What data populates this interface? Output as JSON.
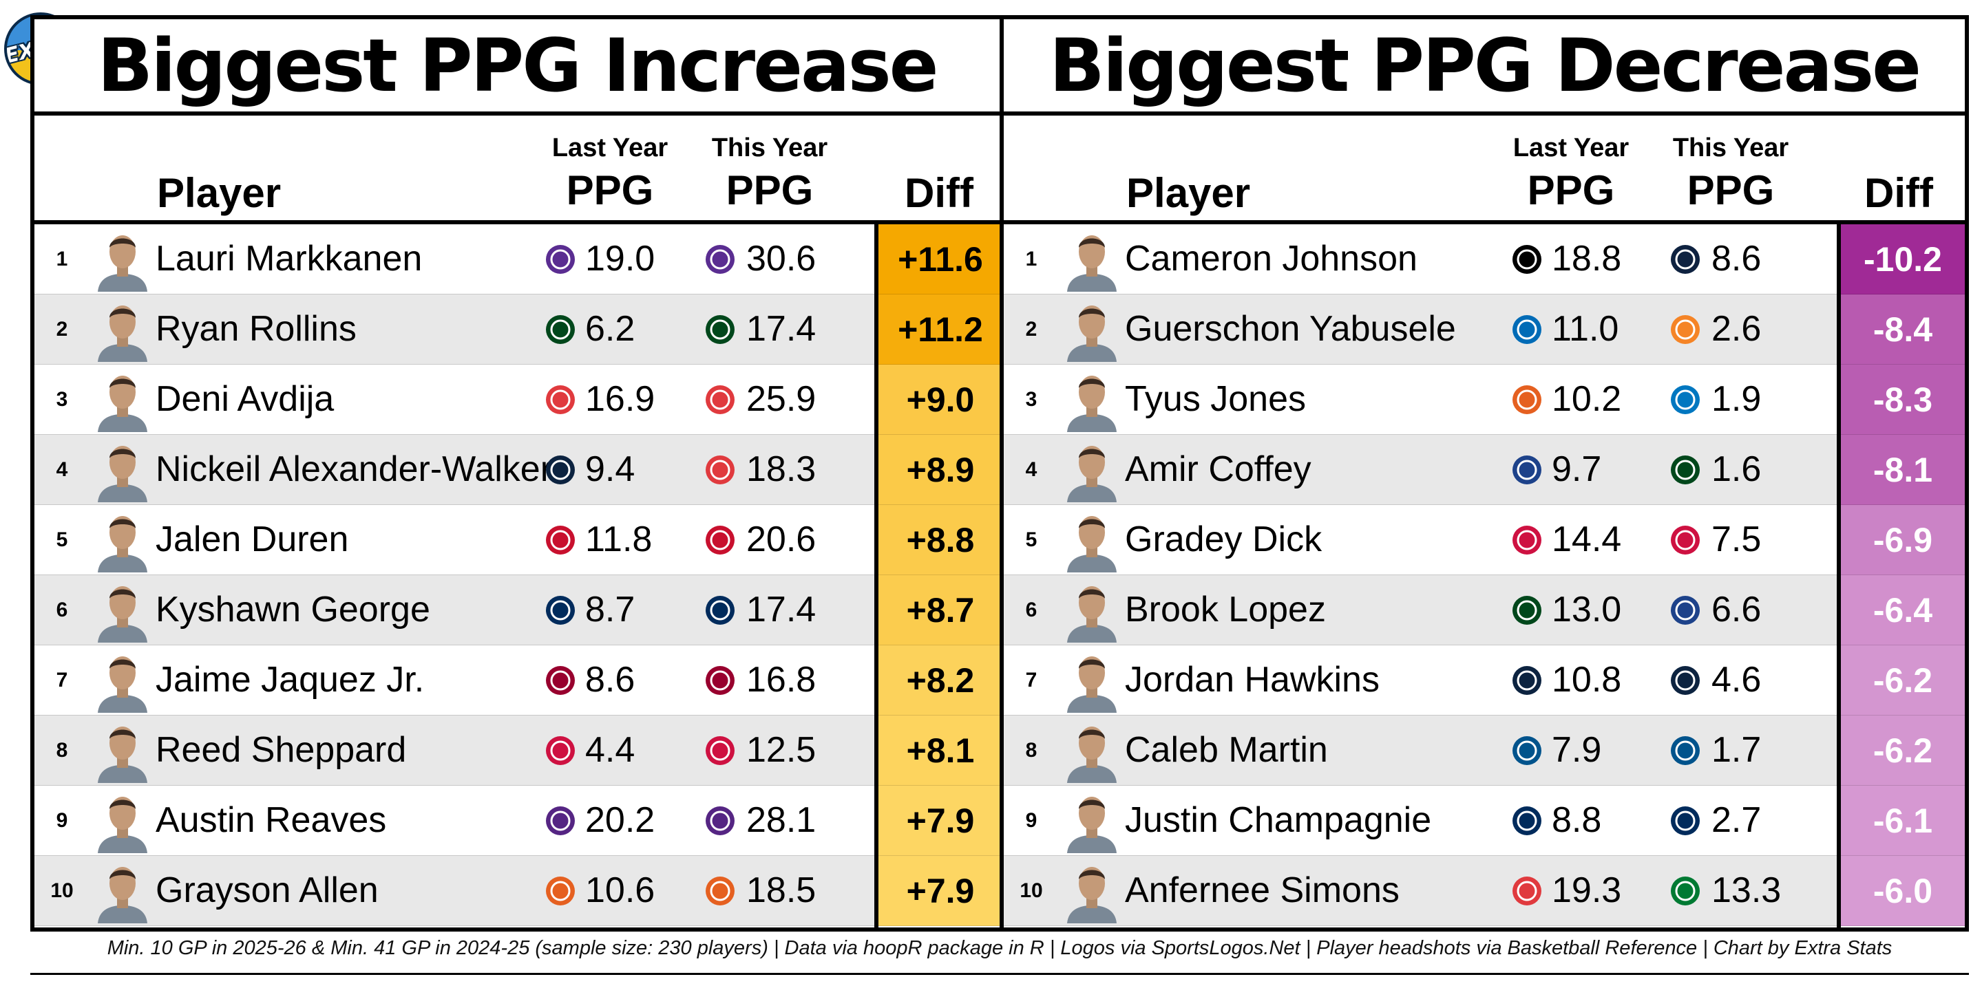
{
  "badge": "EXTRA",
  "chart_data": [
    {
      "type": "table",
      "title": "Biggest PPG Increase",
      "columns": {
        "player": "Player",
        "last_year_small": "Last Year",
        "last_year_big": "PPG",
        "this_year_small": "This Year",
        "this_year_big": "PPG",
        "diff": "Diff"
      },
      "rows": [
        {
          "rank": "1",
          "player": "Lauri Markkanen",
          "last_team_icon": "jazz-logo",
          "last_year": "19.0",
          "this_team_icon": "jazz-logo",
          "this_year": "30.6",
          "diff": "+11.6",
          "diff_value": 11.6
        },
        {
          "rank": "2",
          "player": "Ryan Rollins",
          "last_team_icon": "bucks-logo",
          "last_year": "6.2",
          "this_team_icon": "bucks-logo",
          "this_year": "17.4",
          "diff": "+11.2",
          "diff_value": 11.2
        },
        {
          "rank": "3",
          "player": "Deni Avdija",
          "last_team_icon": "blazers-logo",
          "last_year": "16.9",
          "this_team_icon": "blazers-logo",
          "this_year": "25.9",
          "diff": "+9.0",
          "diff_value": 9.0
        },
        {
          "rank": "4",
          "player": "Nickeil Alexander-Walker",
          "last_team_icon": "timberwolves-logo",
          "last_year": "9.4",
          "this_team_icon": "hawks-logo",
          "this_year": "18.3",
          "diff": "+8.9",
          "diff_value": 8.9
        },
        {
          "rank": "5",
          "player": "Jalen Duren",
          "last_team_icon": "pistons-logo",
          "last_year": "11.8",
          "this_team_icon": "pistons-logo",
          "this_year": "20.6",
          "diff": "+8.8",
          "diff_value": 8.8
        },
        {
          "rank": "6",
          "player": "Kyshawn George",
          "last_team_icon": "wizards-logo",
          "last_year": "8.7",
          "this_team_icon": "wizards-logo",
          "this_year": "17.4",
          "diff": "+8.7",
          "diff_value": 8.7
        },
        {
          "rank": "7",
          "player": "Jaime Jaquez Jr.",
          "last_team_icon": "heat-logo",
          "last_year": "8.6",
          "this_team_icon": "heat-logo",
          "this_year": "16.8",
          "diff": "+8.2",
          "diff_value": 8.2
        },
        {
          "rank": "8",
          "player": "Reed Sheppard",
          "last_team_icon": "rockets-logo",
          "last_year": "4.4",
          "this_team_icon": "rockets-logo",
          "this_year": "12.5",
          "diff": "+8.1",
          "diff_value": 8.1
        },
        {
          "rank": "9",
          "player": "Austin Reaves",
          "last_team_icon": "lakers-logo",
          "last_year": "20.2",
          "this_team_icon": "lakers-logo",
          "this_year": "28.1",
          "diff": "+7.9",
          "diff_value": 7.9
        },
        {
          "rank": "10",
          "player": "Grayson Allen",
          "last_team_icon": "suns-logo",
          "last_year": "10.6",
          "this_team_icon": "suns-logo",
          "this_year": "18.5",
          "diff": "+7.9",
          "diff_value": 7.9
        }
      ]
    },
    {
      "type": "table",
      "title": "Biggest PPG Decrease",
      "columns": {
        "player": "Player",
        "last_year_small": "Last Year",
        "last_year_big": "PPG",
        "this_year_small": "This Year",
        "this_year_big": "PPG",
        "diff": "Diff"
      },
      "rows": [
        {
          "rank": "1",
          "player": "Cameron Johnson",
          "last_team_icon": "nets-logo",
          "last_year": "18.8",
          "this_team_icon": "nuggets-logo",
          "this_year": "8.6",
          "diff": "-10.2",
          "diff_value": -10.2
        },
        {
          "rank": "2",
          "player": "Guerschon Yabusele",
          "last_team_icon": "76ers-logo",
          "last_year": "11.0",
          "this_team_icon": "knicks-logo",
          "this_year": "2.6",
          "diff": "-8.4",
          "diff_value": -8.4
        },
        {
          "rank": "3",
          "player": "Tyus Jones",
          "last_team_icon": "suns-logo",
          "last_year": "10.2",
          "this_team_icon": "magic-logo",
          "this_year": "1.9",
          "diff": "-8.3",
          "diff_value": -8.3
        },
        {
          "rank": "4",
          "player": "Amir Coffey",
          "last_team_icon": "clippers-logo",
          "last_year": "9.7",
          "this_team_icon": "bucks-logo",
          "this_year": "1.6",
          "diff": "-8.1",
          "diff_value": -8.1
        },
        {
          "rank": "5",
          "player": "Gradey Dick",
          "last_team_icon": "raptors-logo",
          "last_year": "14.4",
          "this_team_icon": "raptors-logo",
          "this_year": "7.5",
          "diff": "-6.9",
          "diff_value": -6.9
        },
        {
          "rank": "6",
          "player": "Brook Lopez",
          "last_team_icon": "bucks-logo",
          "last_year": "13.0",
          "this_team_icon": "clippers-logo",
          "this_year": "6.6",
          "diff": "-6.4",
          "diff_value": -6.4
        },
        {
          "rank": "7",
          "player": "Jordan Hawkins",
          "last_team_icon": "pelicans-logo",
          "last_year": "10.8",
          "this_team_icon": "pelicans-logo",
          "this_year": "4.6",
          "diff": "-6.2",
          "diff_value": -6.2
        },
        {
          "rank": "8",
          "player": "Caleb Martin",
          "last_team_icon": "mavericks-logo",
          "last_year": "7.9",
          "this_team_icon": "mavericks-logo",
          "this_year": "1.7",
          "diff": "-6.2",
          "diff_value": -6.2
        },
        {
          "rank": "9",
          "player": "Justin Champagnie",
          "last_team_icon": "wizards-logo",
          "last_year": "8.8",
          "this_team_icon": "wizards-logo",
          "this_year": "2.7",
          "diff": "-6.1",
          "diff_value": -6.1
        },
        {
          "rank": "10",
          "player": "Anfernee Simons",
          "last_team_icon": "blazers-logo",
          "last_year": "19.3",
          "this_team_icon": "celtics-logo",
          "this_year": "13.3",
          "diff": "-6.0",
          "diff_value": -6.0
        }
      ]
    }
  ],
  "colors": {
    "increase_high": "#f5a800",
    "increase_low": "#fdd663",
    "decrease_high": "#a02a96",
    "decrease_low": "#d79bd3",
    "row_alt": "#e8e8e8"
  },
  "team_colors": {
    "jazz-logo": "#5a2d91",
    "bucks-logo": "#00471b",
    "blazers-logo": "#e03a3e",
    "timberwolves-logo": "#0c2340",
    "hawks-logo": "#e03a3e",
    "pistons-logo": "#c8102e",
    "wizards-logo": "#002b5c",
    "heat-logo": "#98002e",
    "rockets-logo": "#ce1141",
    "lakers-logo": "#552583",
    "suns-logo": "#e56020",
    "nets-logo": "#000000",
    "nuggets-logo": "#0e2240",
    "76ers-logo": "#006bb6",
    "knicks-logo": "#f58426",
    "magic-logo": "#0077c0",
    "clippers-logo": "#1d428a",
    "raptors-logo": "#ce1141",
    "pelicans-logo": "#0c2340",
    "mavericks-logo": "#00538c",
    "celtics-logo": "#007a33"
  },
  "footnote": "Min. 10 GP in 2025-26 & Min. 41 GP in 2024-25 (sample size: 230 players) | Data via hoopR package in R | Logos via SportsLogos.Net | Player headshots via Basketball Reference | Chart by Extra Stats"
}
